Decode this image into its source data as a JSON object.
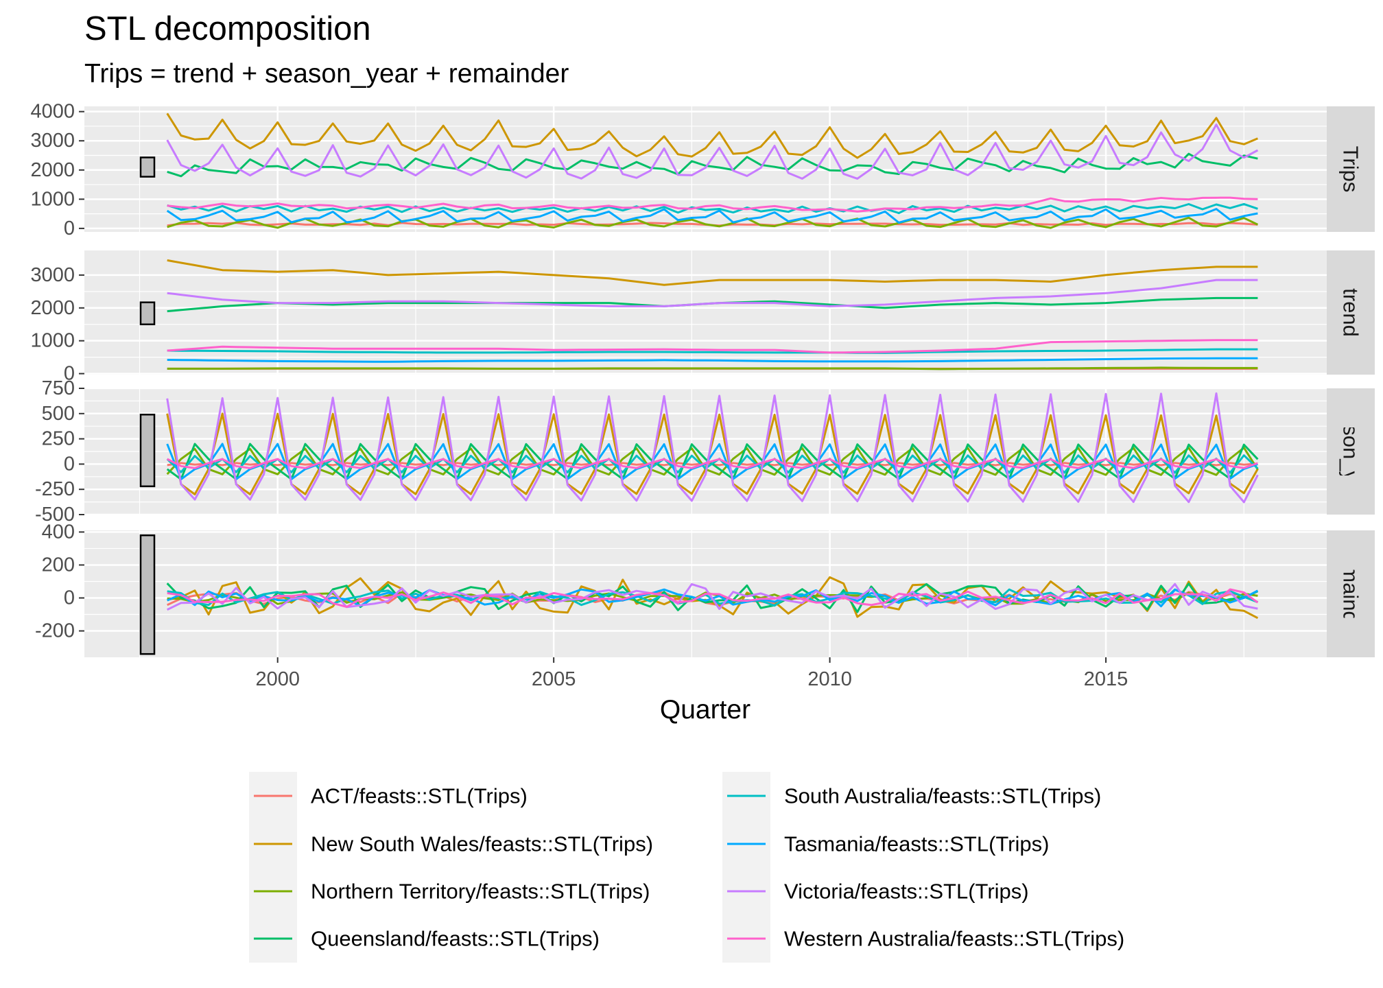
{
  "title": "STL decomposition",
  "subtitle": "Trips = trend + season_year + remainder",
  "x_axis_title": "Quarter",
  "panels": [
    "Trips",
    "trend",
    "season_year",
    "remainder"
  ],
  "legend_labels": [
    "ACT/feasts::STL(Trips)",
    "New South Wales/feasts::STL(Trips)",
    "Northern Territory/feasts::STL(Trips)",
    "Queensland/feasts::STL(Trips)",
    "South Australia/feasts::STL(Trips)",
    "Tasmania/feasts::STL(Trips)",
    "Victoria/feasts::STL(Trips)",
    "Western Australia/feasts::STL(Trips)"
  ],
  "chart_data": {
    "type": "line",
    "title": "STL decomposition",
    "subtitle": "Trips = trend + season_year + remainder",
    "xlabel": "Quarter",
    "x_start": "1998 Q1",
    "x_end": "2017 Q4",
    "x_ticks": [
      2000,
      2005,
      2010,
      2015
    ],
    "xlim": [
      1996.5,
      2019.0
    ],
    "grid": true,
    "legend_position": "bottom",
    "series_names": [
      "ACT/feasts::STL(Trips)",
      "New South Wales/feasts::STL(Trips)",
      "Northern Territory/feasts::STL(Trips)",
      "Queensland/feasts::STL(Trips)",
      "South Australia/feasts::STL(Trips)",
      "Tasmania/feasts::STL(Trips)",
      "Victoria/feasts::STL(Trips)",
      "Western Australia/feasts::STL(Trips)"
    ],
    "colors": [
      "#F8766D",
      "#CD9600",
      "#7CAE00",
      "#00BE67",
      "#00BFC4",
      "#00A9FF",
      "#C77CFF",
      "#FF61CC"
    ],
    "panels": [
      {
        "name": "Trips",
        "ylim": [
          -120,
          4180
        ],
        "y_ticks": [
          0,
          1000,
          2000,
          3000,
          4000
        ],
        "scale_bar": [
          1770,
          2430
        ],
        "series": [
          {
            "name": "ACT/feasts::STL(Trips)",
            "trend": [
              150,
              150,
              150,
              150,
              150,
              150,
              150,
              150,
              150,
              150,
              150,
              150,
              150,
              150,
              150,
              150,
              150,
              150,
              150,
              150
            ],
            "season": [
              -10,
              10,
              -5,
              5
            ],
            "noise_amp": 35
          },
          {
            "name": "New South Wales/feasts::STL(Trips)",
            "trend": [
              3450,
              3150,
              3100,
              3150,
              3000,
              3050,
              3100,
              3000,
              2900,
              2700,
              2850,
              2850,
              2850,
              2800,
              2850,
              2850,
              2800,
              3000,
              3150,
              3250
            ],
            "season": [
              500,
              -200,
              -300,
              -50
            ],
            "noise_amp": 100
          },
          {
            "name": "Northern Territory/feasts::STL(Trips)",
            "trend": [
              150,
              150,
              160,
              160,
              160,
              160,
              150,
              150,
              160,
              160,
              160,
              160,
              160,
              160,
              140,
              150,
              160,
              170,
              180,
              170
            ],
            "season": [
              -100,
              50,
              150,
              -50
            ],
            "noise_amp": 30
          },
          {
            "name": "Queensland/feasts::STL(Trips)",
            "trend": [
              1900,
              2050,
              2150,
              2100,
              2150,
              2150,
              2150,
              2150,
              2150,
              2050,
              2150,
              2200,
              2100,
              2000,
              2100,
              2150,
              2100,
              2150,
              2250,
              2300
            ],
            "season": [
              -50,
              -150,
              200,
              50
            ],
            "noise_amp": 80
          },
          {
            "name": "South Australia/feasts::STL(Trips)",
            "trend": [
              700,
              690,
              680,
              660,
              650,
              640,
              640,
              650,
              660,
              660,
              650,
              640,
              640,
              630,
              660,
              680,
              690,
              700,
              720,
              740
            ],
            "season": [
              50,
              -80,
              80,
              -40
            ],
            "noise_amp": 40
          },
          {
            "name": "Tasmania/feasts::STL(Trips)",
            "trend": [
              420,
              400,
              380,
              370,
              360,
              380,
              390,
              390,
              400,
              410,
              400,
              380,
              370,
              370,
              380,
              400,
              420,
              440,
              460,
              470
            ],
            "season": [
              200,
              -150,
              -50,
              0
            ],
            "noise_amp": 40
          },
          {
            "name": "Victoria/feasts::STL(Trips)",
            "trend": [
              2450,
              2250,
              2150,
              2150,
              2200,
              2200,
              2150,
              2100,
              2050,
              2050,
              2150,
              2150,
              2050,
              2100,
              2200,
              2300,
              2350,
              2450,
              2600,
              2850
            ],
            "season": [
              650,
              -200,
              -350,
              -100
            ],
            "noise_amp": 70
          },
          {
            "name": "Western Australia/feasts::STL(Trips)",
            "trend": [
              700,
              820,
              790,
              760,
              760,
              760,
              760,
              720,
              730,
              740,
              720,
              720,
              640,
              660,
              700,
              760,
              960,
              980,
              1000,
              1020
            ],
            "season": [
              50,
              -20,
              -40,
              10
            ],
            "noise_amp": 40
          }
        ]
      },
      {
        "name": "trend",
        "ylim": [
          -30,
          3750
        ],
        "y_ticks": [
          0,
          1000,
          2000,
          3000
        ],
        "scale_bar": [
          1500,
          2170
        ],
        "series": [
          {
            "name": "ACT/feasts::STL(Trips)",
            "values": [
              150,
              150,
              150,
              150,
              150,
              150,
              150,
              150,
              150,
              150,
              150,
              150,
              150,
              150,
              150,
              150,
              150,
              150,
              150,
              150
            ],
            "smooth": true
          },
          {
            "name": "New South Wales/feasts::STL(Trips)",
            "values": [
              3450,
              3150,
              3100,
              3150,
              3000,
              3050,
              3100,
              3000,
              2900,
              2700,
              2850,
              2850,
              2850,
              2800,
              2850,
              2850,
              2800,
              3000,
              3150,
              3250
            ],
            "smooth": true
          },
          {
            "name": "Northern Territory/feasts::STL(Trips)",
            "values": [
              150,
              150,
              160,
              160,
              160,
              160,
              150,
              150,
              160,
              160,
              160,
              160,
              160,
              160,
              140,
              150,
              160,
              170,
              180,
              170
            ],
            "smooth": true
          },
          {
            "name": "Queensland/feasts::STL(Trips)",
            "values": [
              1900,
              2050,
              2150,
              2100,
              2150,
              2150,
              2150,
              2150,
              2150,
              2050,
              2150,
              2200,
              2100,
              2000,
              2100,
              2150,
              2100,
              2150,
              2250,
              2300
            ],
            "smooth": true
          },
          {
            "name": "South Australia/feasts::STL(Trips)",
            "values": [
              700,
              690,
              680,
              660,
              650,
              640,
              640,
              650,
              660,
              660,
              650,
              640,
              640,
              630,
              660,
              680,
              690,
              700,
              720,
              740
            ],
            "smooth": true
          },
          {
            "name": "Tasmania/feasts::STL(Trips)",
            "values": [
              420,
              400,
              380,
              370,
              360,
              380,
              390,
              390,
              400,
              410,
              400,
              380,
              370,
              370,
              380,
              400,
              420,
              440,
              460,
              470
            ],
            "smooth": true
          },
          {
            "name": "Victoria/feasts::STL(Trips)",
            "values": [
              2450,
              2250,
              2150,
              2150,
              2200,
              2200,
              2150,
              2100,
              2050,
              2050,
              2150,
              2150,
              2050,
              2100,
              2200,
              2300,
              2350,
              2450,
              2600,
              2850
            ],
            "smooth": true
          },
          {
            "name": "Western Australia/feasts::STL(Trips)",
            "values": [
              700,
              820,
              790,
              760,
              760,
              760,
              760,
              720,
              730,
              740,
              720,
              720,
              640,
              660,
              700,
              760,
              960,
              980,
              1000,
              1020
            ],
            "smooth": true
          }
        ]
      },
      {
        "name": "season_year",
        "ylim": [
          -500,
          750
        ],
        "y_ticks": [
          -500,
          -250,
          0,
          250,
          500,
          750
        ],
        "scale_bar": [
          -220,
          490
        ],
        "series": [
          {
            "name": "ACT/feasts::STL(Trips)",
            "season": [
              -10,
              10,
              -5,
              5
            ]
          },
          {
            "name": "New South Wales/feasts::STL(Trips)",
            "season": [
              500,
              -200,
              -300,
              -50
            ]
          },
          {
            "name": "Northern Territory/feasts::STL(Trips)",
            "season": [
              -100,
              50,
              150,
              -50
            ]
          },
          {
            "name": "Queensland/feasts::STL(Trips)",
            "season": [
              -50,
              -150,
              200,
              50
            ]
          },
          {
            "name": "South Australia/feasts::STL(Trips)",
            "season": [
              50,
              -80,
              80,
              -40
            ]
          },
          {
            "name": "Tasmania/feasts::STL(Trips)",
            "season": [
              200,
              -150,
              -50,
              0
            ]
          },
          {
            "name": "Victoria/feasts::STL(Trips)",
            "season": [
              650,
              -200,
              -350,
              -100
            ]
          },
          {
            "name": "Western Australia/feasts::STL(Trips)",
            "season": [
              50,
              -20,
              -40,
              10
            ]
          }
        ]
      },
      {
        "name": "remainder",
        "ylim": [
          -360,
          410
        ],
        "y_ticks": [
          -200,
          0,
          200,
          400
        ],
        "scale_bar": [
          -340,
          380
        ],
        "series": [
          {
            "name": "ACT/feasts::STL(Trips)",
            "noise_amp": 35
          },
          {
            "name": "New South Wales/feasts::STL(Trips)",
            "noise_amp": 100
          },
          {
            "name": "Northern Territory/feasts::STL(Trips)",
            "noise_amp": 30
          },
          {
            "name": "Queensland/feasts::STL(Trips)",
            "noise_amp": 80
          },
          {
            "name": "South Australia/feasts::STL(Trips)",
            "noise_amp": 40
          },
          {
            "name": "Tasmania/feasts::STL(Trips)",
            "noise_amp": 40
          },
          {
            "name": "Victoria/feasts::STL(Trips)",
            "noise_amp": 70
          },
          {
            "name": "Western Australia/feasts::STL(Trips)",
            "noise_amp": 40
          }
        ]
      }
    ]
  }
}
